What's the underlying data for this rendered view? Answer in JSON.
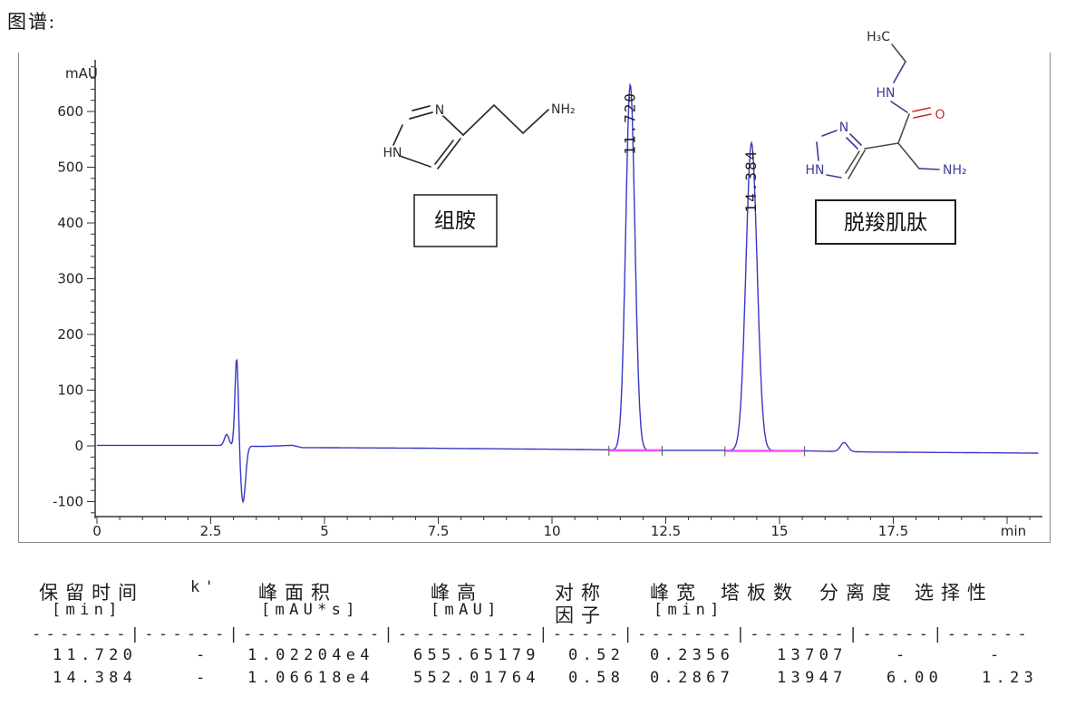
{
  "page": {
    "title": "图谱:"
  },
  "chart_data": {
    "type": "line",
    "xlabel": "min",
    "ylabel": "mAU",
    "xlim": [
      0,
      20.7
    ],
    "ylim": [
      -130,
      690
    ],
    "x_major_ticks": [
      0,
      2.5,
      5,
      7.5,
      10,
      12.5,
      15,
      17.5,
      20
    ],
    "x_tick_labels": [
      "0",
      "2.5",
      "5",
      "7.5",
      "10",
      "12.5",
      "15",
      "17.5",
      ""
    ],
    "x_minor_step": 0.5,
    "y_major_ticks": [
      -100,
      0,
      100,
      200,
      300,
      400,
      500,
      600
    ],
    "y_minor_step": 20,
    "trace_color": "#3838c8",
    "integration_color": "#ee55ee",
    "peaks": [
      {
        "label": "11.720",
        "center": 11.72,
        "height": 655.65,
        "sigma": 0.1
      },
      {
        "label": "14.384",
        "center": 14.384,
        "height": 552.02,
        "sigma": 0.122
      }
    ],
    "disturbances": [
      {
        "center": 2.85,
        "height": 20,
        "sigma": 0.05
      },
      {
        "center": 3.07,
        "height": 160,
        "sigma": 0.038
      },
      {
        "center": 3.21,
        "height": -100,
        "sigma": 0.055
      },
      {
        "center": 16.42,
        "height": 16,
        "sigma": 0.08
      }
    ],
    "baseline_anchors": [
      [
        0,
        1
      ],
      [
        2.6,
        1
      ],
      [
        3.6,
        -1
      ],
      [
        4.3,
        1
      ],
      [
        4.5,
        -3
      ],
      [
        7,
        -4
      ],
      [
        10,
        -6
      ],
      [
        11.2,
        -7
      ],
      [
        12.5,
        -8
      ],
      [
        13.8,
        -8
      ],
      [
        15.6,
        -9
      ],
      [
        17,
        -11
      ],
      [
        20.7,
        -13
      ]
    ],
    "integration_segments": [
      [
        11.25,
        12.42,
        -8
      ],
      [
        13.8,
        15.55,
        -9
      ]
    ]
  },
  "structures": [
    {
      "name": "histamine",
      "label_box": "组胺",
      "atoms": {
        "n": "N",
        "hn": "HN",
        "nh2": "NH₂"
      }
    },
    {
      "name": "carcinine",
      "label_box": "脱羧肌肽",
      "atoms": {
        "h3c": "H₃C",
        "hn_amide": "HN",
        "o": "O",
        "n": "N",
        "hn_ring": "HN",
        "nh2": "NH₂"
      }
    }
  ],
  "table": {
    "headers_line1": [
      "保留时间",
      "k'",
      "峰面积",
      "峰高",
      "对称",
      "峰宽",
      "塔板数",
      "分离度",
      "选择性"
    ],
    "headers_line2": [
      "[min]",
      "",
      "[mAU*s]",
      "[mAU]",
      "因子",
      "[min]",
      "",
      "",
      ""
    ],
    "separator": "-------|------|----------|----------|-----|-------|-------|-----|------",
    "rows": [
      [
        "11.720",
        "-",
        "1.02204e4",
        "655.65179",
        "0.52",
        "0.2356",
        "13707",
        "-",
        "-"
      ],
      [
        "14.384",
        "-",
        "1.06618e4",
        "552.01764",
        "0.58",
        "0.2867",
        "13947",
        "6.00",
        "1.23"
      ]
    ]
  }
}
